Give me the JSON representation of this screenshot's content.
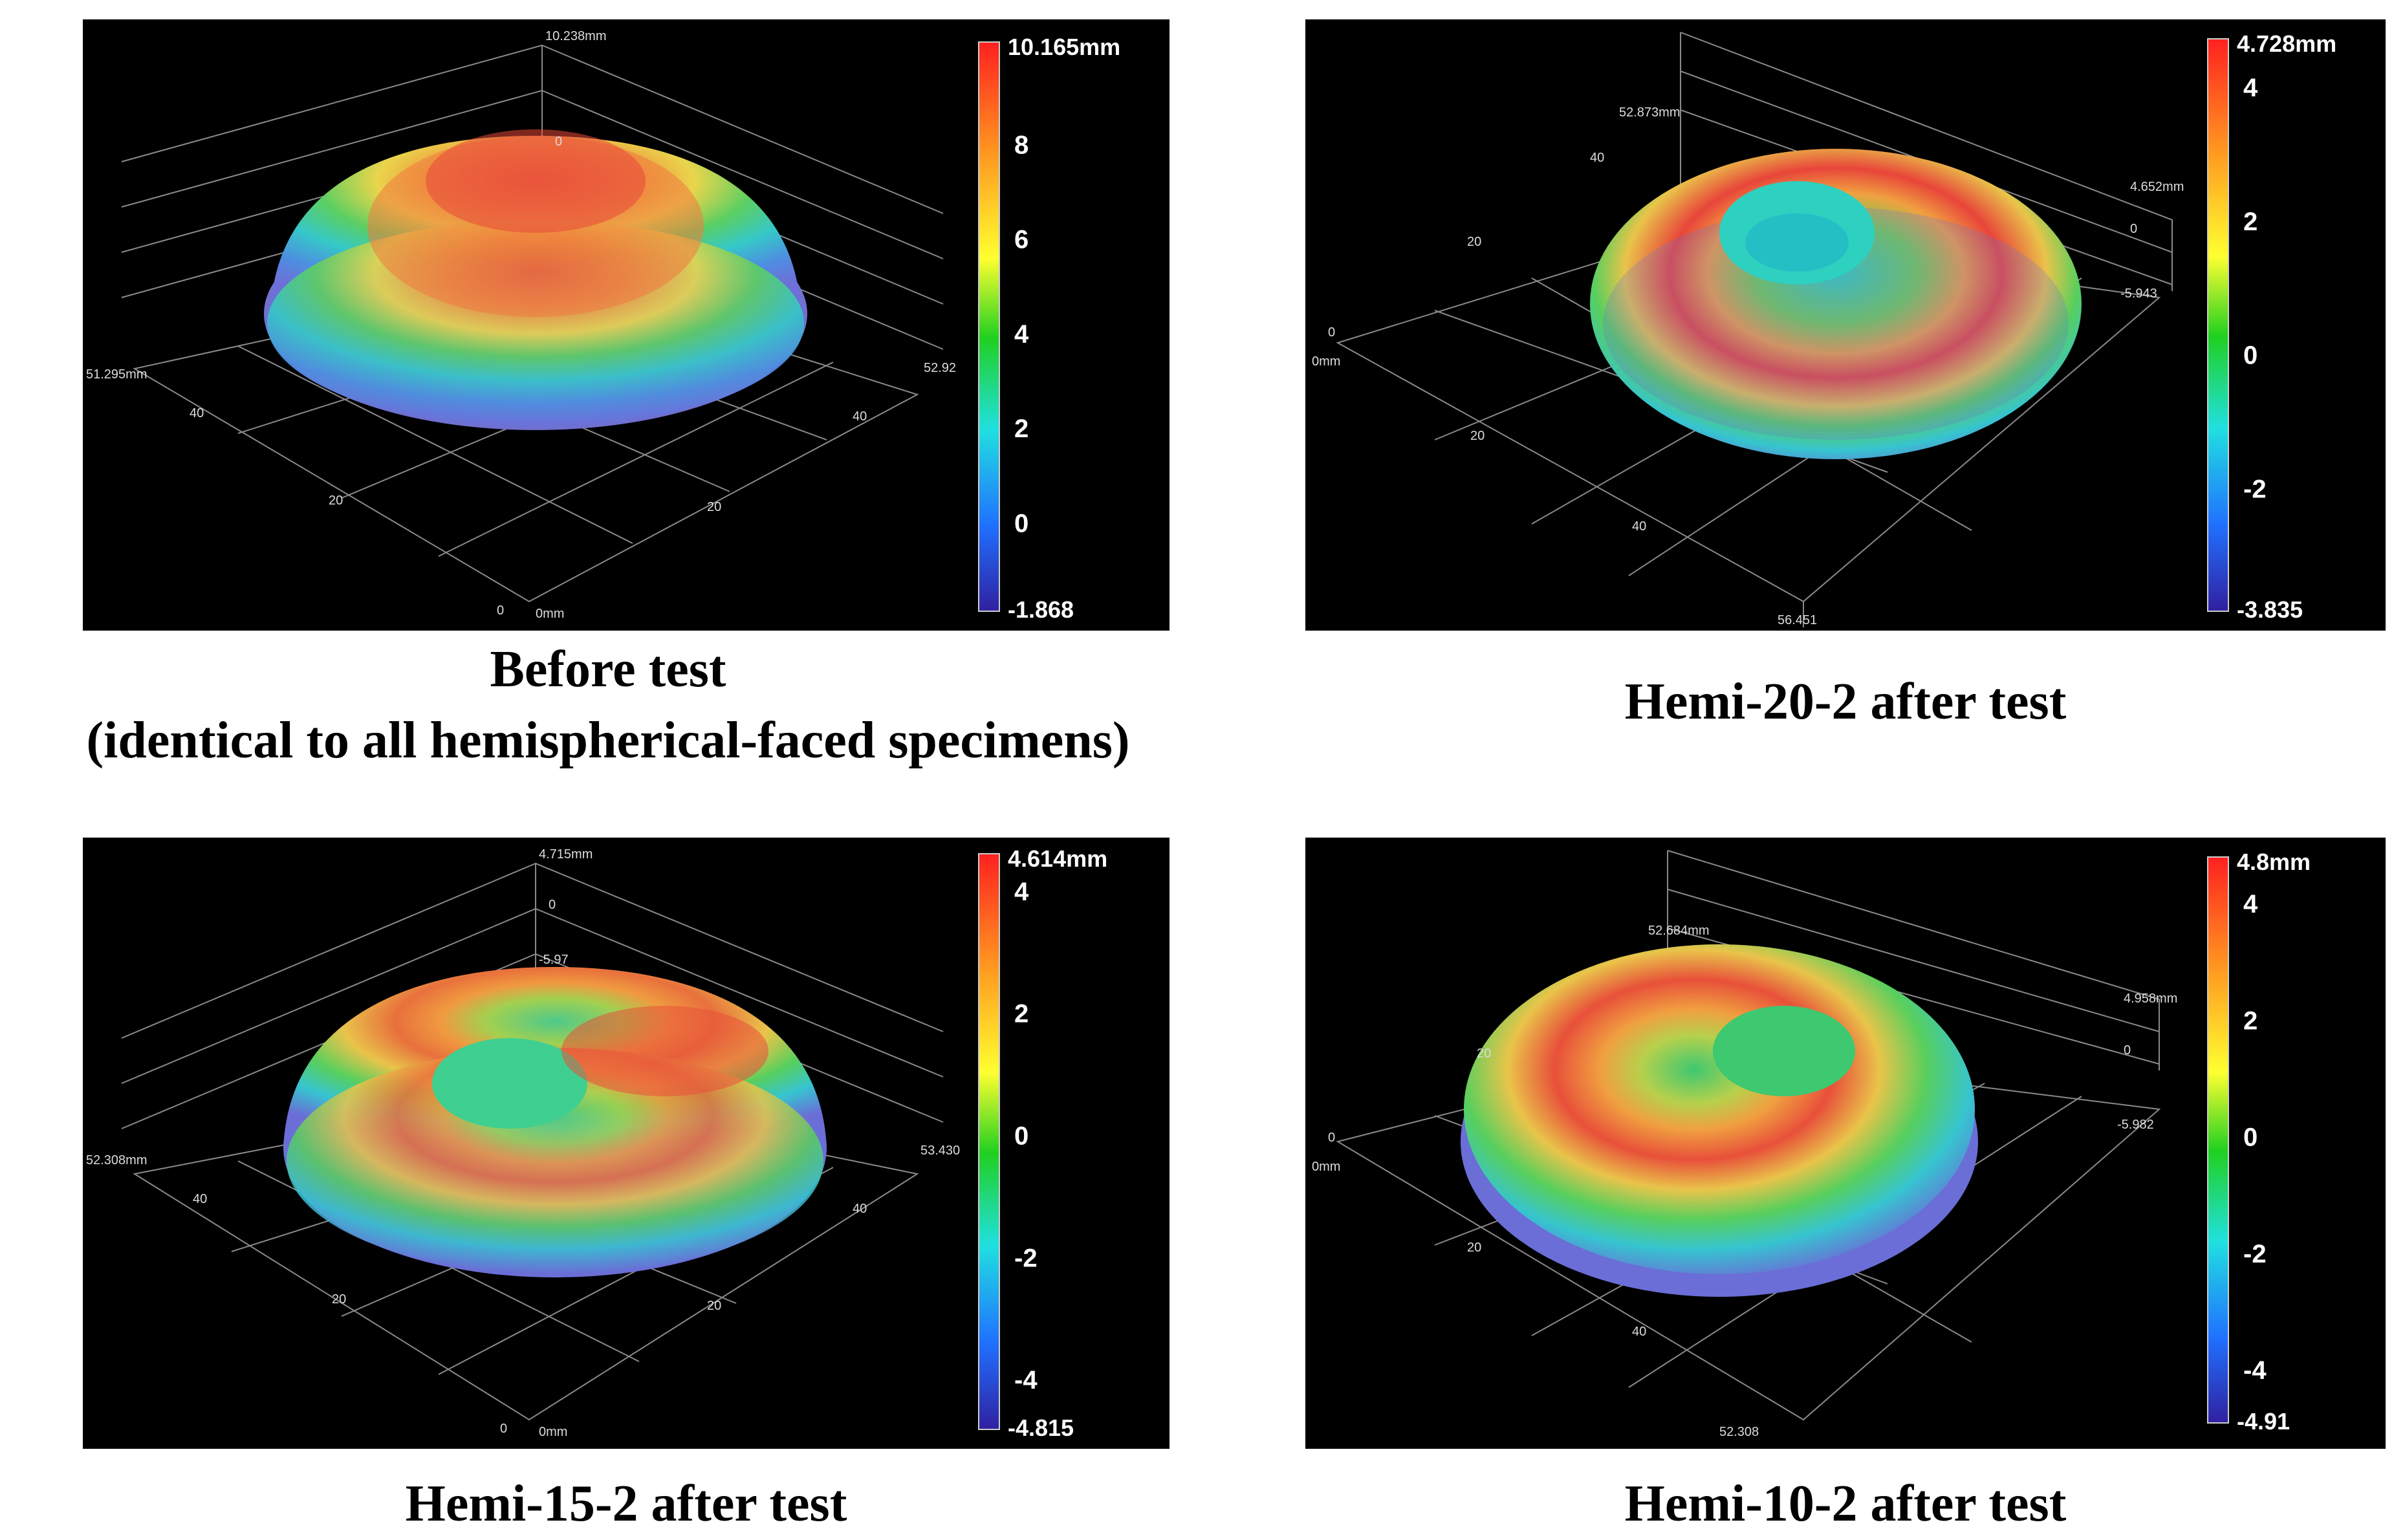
{
  "panels": [
    {
      "id": "before",
      "type": "dome",
      "colorbar": {
        "max_label": "10.165mm",
        "min_label": "-1.868",
        "ticks": [
          "8",
          "6",
          "4",
          "2",
          "0"
        ],
        "min": -1.868,
        "max": 10.165,
        "tick_values": [
          8,
          6,
          4,
          2,
          0
        ]
      },
      "axis_labels": [
        "10.238mm",
        "0",
        "51.295mm",
        "52.92",
        "40",
        "20",
        "20",
        "40",
        "0",
        "0mm"
      ],
      "caption_lines": [
        "Before test",
        "(identical to all hemispherical-faced specimens)"
      ]
    },
    {
      "id": "hemi20",
      "type": "ring",
      "colorbar": {
        "max_label": "4.728mm",
        "min_label": "-3.835",
        "ticks": [
          "4",
          "2",
          "0",
          "-2"
        ],
        "min": -3.835,
        "max": 4.728,
        "tick_values": [
          4,
          2,
          0,
          -2
        ]
      },
      "axis_labels": [
        "52.873mm",
        "40",
        "20",
        "0",
        "0mm",
        "20",
        "40",
        "56.451",
        "4.652mm",
        "0",
        "-5.943"
      ],
      "caption_lines": [
        "Hemi-20-2 after test"
      ]
    },
    {
      "id": "hemi15",
      "type": "ring",
      "colorbar": {
        "max_label": "4.614mm",
        "min_label": "-4.815",
        "ticks": [
          "4",
          "2",
          "0",
          "-2",
          "-4"
        ],
        "min": -4.815,
        "max": 4.614,
        "tick_values": [
          4,
          2,
          0,
          -2,
          -4
        ]
      },
      "axis_labels": [
        "4.715mm",
        "0",
        "-5.97",
        "52.308mm",
        "53.430",
        "40",
        "20",
        "20",
        "40",
        "0",
        "0mm"
      ],
      "caption_lines": [
        "Hemi-15-2 after test"
      ]
    },
    {
      "id": "hemi10",
      "type": "ring",
      "colorbar": {
        "max_label": "4.8mm",
        "min_label": "-4.91",
        "ticks": [
          "4",
          "2",
          "0",
          "-2",
          "-4"
        ],
        "min": -4.91,
        "max": 4.8,
        "tick_values": [
          4,
          2,
          0,
          -2,
          -4
        ]
      },
      "axis_labels": [
        "52.684mm",
        "20",
        "0",
        "0mm",
        "20",
        "40",
        "52.308",
        "4.958mm",
        "0",
        "-5.982"
      ],
      "caption_lines": [
        "Hemi-10-2 after test"
      ]
    }
  ]
}
